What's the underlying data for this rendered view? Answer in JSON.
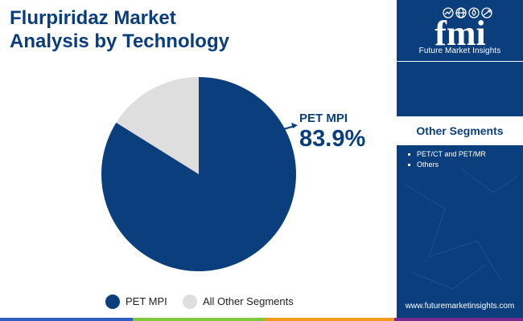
{
  "title": {
    "line1": "Flurpiridaz Market",
    "line2": "Analysis by Technology"
  },
  "brand": {
    "logo_text": "fmi",
    "logo_caption": "Future Market Insights",
    "website": "www.futuremarketinsights.com",
    "logo_icons": [
      "chart-icon",
      "globe-icon",
      "droplet-icon",
      "arrows-icon"
    ]
  },
  "sidebar": {
    "heading": "Other Segments",
    "items": [
      "PET/CT and PET/MR",
      "Others"
    ]
  },
  "chart_data": {
    "type": "pie",
    "slices": [
      {
        "label": "PET MPI",
        "value": 83.9,
        "color": "#0b3e7d"
      },
      {
        "label": "All Other Segments",
        "value": 16.1,
        "color": "#dedede"
      }
    ],
    "callout": {
      "label": "PET MPI",
      "value": "83.9%"
    },
    "legend": [
      "PET MPI",
      "All Other Segments"
    ],
    "legend_position": "bottom"
  },
  "colors": {
    "primary": "#0b3e7d",
    "secondary": "#dedede",
    "footer": [
      "#2f5fbe",
      "#7fc63a",
      "#f29a1e",
      "#7a2b8f"
    ]
  }
}
